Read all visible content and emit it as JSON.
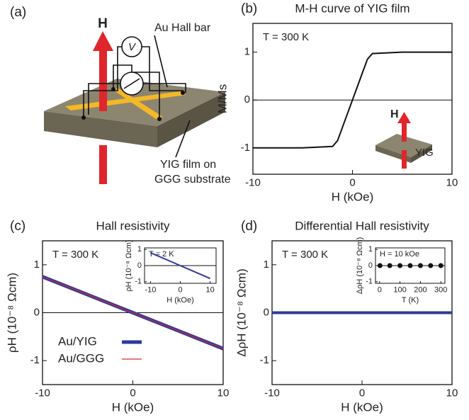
{
  "diagram": {
    "label": "(a)",
    "field": "H",
    "voltmeter": "V",
    "hall_bar": "Au Hall bar",
    "film": [
      "YIG film on",
      "GGG substrate"
    ]
  },
  "chart_data": [
    {
      "type": "line",
      "label": "(b)",
      "title": "M-H curve of YIG film",
      "annotation": "T = 300 K",
      "xlabel": "H (kOe)",
      "ylabel": "M/Ms",
      "x": [
        -10,
        -5,
        -2,
        -1.5,
        0,
        1.5,
        2,
        5,
        10
      ],
      "values": [
        -1,
        -1,
        -0.97,
        -0.85,
        0,
        0.85,
        0.97,
        1,
        1
      ],
      "color": "#111111",
      "xlim": [
        -10,
        10
      ],
      "xticks": [
        -10,
        0,
        10
      ],
      "ylim": [
        -1.55,
        1.6
      ],
      "yticks": [
        -1,
        0,
        1
      ],
      "inset": {
        "field": "H",
        "sample": "YIG"
      }
    },
    {
      "type": "line",
      "label": "(c)",
      "title": "Hall resistivity",
      "annotation": "T = 300 K",
      "xlabel": "H (kOe)",
      "ylabel": "ρH (10⁻⁸ Ωcm)",
      "x": [
        -10,
        0,
        10
      ],
      "series": [
        {
          "name": "Au/YIG",
          "color": "#2e3b9b",
          "linewidth": 5,
          "values": [
            0.75,
            0,
            -0.75
          ]
        },
        {
          "name": "Au/GGG",
          "color": "#e0262b",
          "linewidth": 1.2,
          "values": [
            0.75,
            0,
            -0.75
          ]
        }
      ],
      "legend": "lower left",
      "xlim": [
        -10,
        10
      ],
      "xticks": [
        -10,
        0,
        10
      ],
      "ylim": [
        -1.5,
        1.5
      ],
      "yticks": [
        -1,
        0,
        1
      ],
      "inset": {
        "type": "line",
        "annotation": "T = 2 K",
        "xlabel": "H (kOe)",
        "ylabel": "ρH (10⁻⁸ Ωcm)",
        "x": [
          -10,
          0,
          10
        ],
        "series": [
          {
            "color": "#2e3b9b",
            "linewidth": 2,
            "values": [
              0.8,
              0,
              -0.8
            ]
          }
        ],
        "xlim": [
          -12,
          12
        ],
        "xticks": [
          -10,
          0,
          10
        ],
        "ylim": [
          -1.1,
          1.1
        ],
        "yticks": [
          -1,
          0,
          1
        ]
      }
    },
    {
      "type": "line",
      "label": "(d)",
      "title": "Differential Hall resistivity",
      "annotation": "T = 300 K",
      "xlabel": "H (kOe)",
      "ylabel": "ΔρH (10⁻⁸ Ωcm)",
      "x": [
        -10,
        0,
        10
      ],
      "series": [
        {
          "color": "#2e3b9b",
          "linewidth": 4,
          "values": [
            0,
            0,
            0
          ]
        }
      ],
      "xlim": [
        -10,
        10
      ],
      "xticks": [
        -10,
        0,
        10
      ],
      "ylim": [
        -1.5,
        1.5
      ],
      "yticks": [
        -1,
        0,
        1
      ],
      "inset": {
        "type": "scatter",
        "annotation": "H = 10 kOe",
        "xlabel": "T (K)",
        "ylabel": "ΔρH (10⁻⁸ Ωcm)",
        "x": [
          2,
          50,
          100,
          150,
          200,
          250,
          300
        ],
        "series": [
          {
            "color": "#111111",
            "values": [
              0,
              0,
              0,
              0,
              0,
              0,
              0
            ]
          }
        ],
        "xlim": [
          -20,
          320
        ],
        "xticks": [
          0,
          100,
          200,
          300
        ],
        "ylim": [
          -1.1,
          1.1
        ],
        "yticks": [
          -1,
          0,
          1
        ]
      }
    }
  ]
}
